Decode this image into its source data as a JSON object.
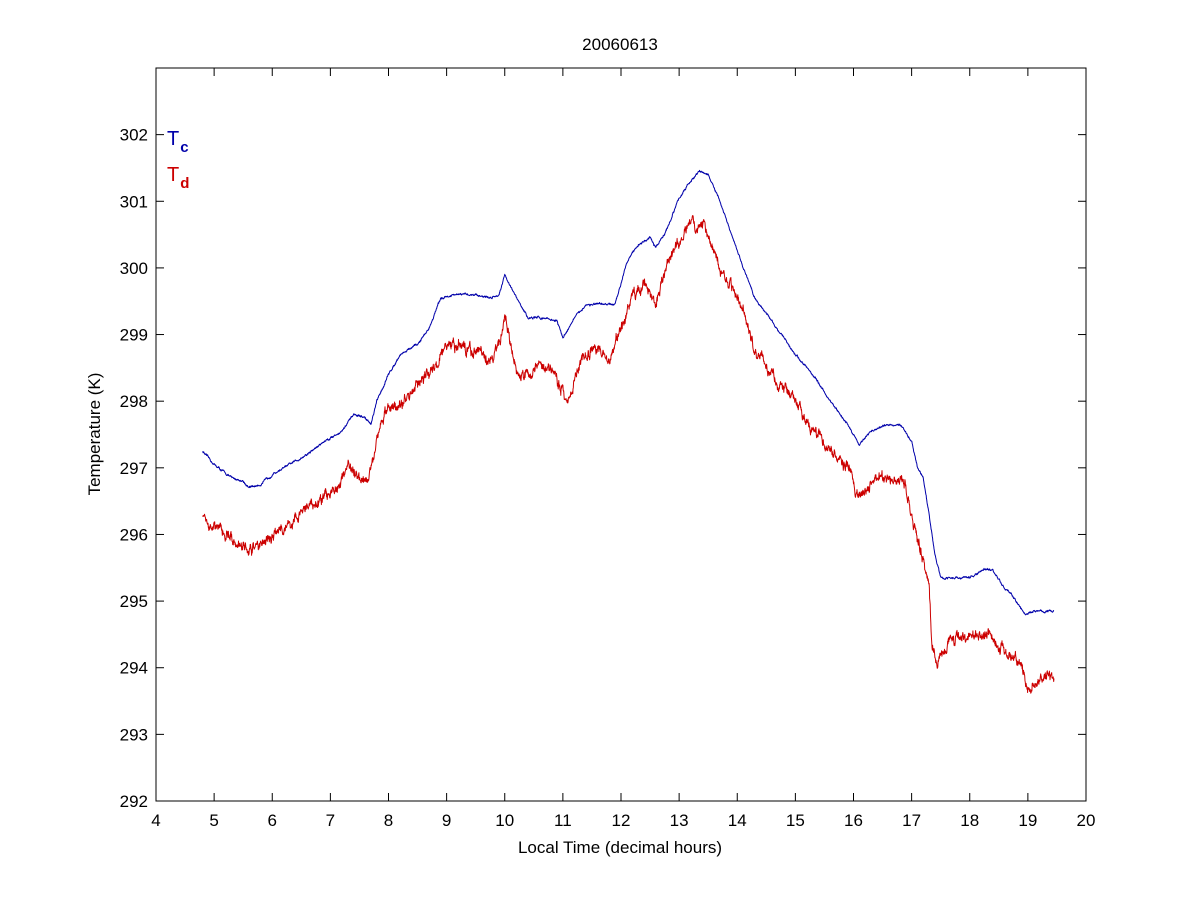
{
  "chart_data": {
    "type": "line",
    "title": "20060613",
    "xlabel": "Local Time (decimal hours)",
    "ylabel": "Temperature (K)",
    "xlim": [
      4,
      20
    ],
    "ylim": [
      292,
      303
    ],
    "xticks": [
      4,
      5,
      6,
      7,
      8,
      9,
      10,
      11,
      12,
      13,
      14,
      15,
      16,
      17,
      18,
      19,
      20
    ],
    "yticks": [
      292,
      293,
      294,
      295,
      296,
      297,
      298,
      299,
      300,
      301,
      302
    ],
    "grid": false,
    "legend": {
      "placement": "top-left",
      "entries": [
        {
          "base": "T",
          "sub": "c",
          "color": "#0000aa"
        },
        {
          "base": "T",
          "sub": "d",
          "color": "#cc0000"
        }
      ]
    },
    "series": [
      {
        "name": "Tc",
        "color": "#0000aa",
        "noise": 0.02,
        "x": [
          4.8,
          5.0,
          5.3,
          5.5,
          5.6,
          5.8,
          6.0,
          6.3,
          6.6,
          6.9,
          7.2,
          7.4,
          7.6,
          7.7,
          7.8,
          8.0,
          8.2,
          8.5,
          8.7,
          8.9,
          9.2,
          9.5,
          9.75,
          9.9,
          10.0,
          10.2,
          10.4,
          10.7,
          10.9,
          11.0,
          11.2,
          11.4,
          11.6,
          11.9,
          12.1,
          12.3,
          12.5,
          12.6,
          12.8,
          13.0,
          13.2,
          13.35,
          13.5,
          13.7,
          14.0,
          14.3,
          14.6,
          15.0,
          15.3,
          15.6,
          15.9,
          16.1,
          16.3,
          16.6,
          16.8,
          17.0,
          17.1,
          17.2,
          17.3,
          17.4,
          17.5,
          17.7,
          18.0,
          18.3,
          18.4,
          18.6,
          18.8,
          18.95,
          19.1,
          19.3,
          19.45
        ],
        "y": [
          297.25,
          297.05,
          296.85,
          296.8,
          296.7,
          296.75,
          296.9,
          297.05,
          297.2,
          297.4,
          297.55,
          297.8,
          297.75,
          297.65,
          298.0,
          298.4,
          298.7,
          298.85,
          299.1,
          299.55,
          299.6,
          299.6,
          299.55,
          299.6,
          299.9,
          299.55,
          299.25,
          299.25,
          299.2,
          298.95,
          299.25,
          299.45,
          299.45,
          299.45,
          300.1,
          300.35,
          300.45,
          300.3,
          300.6,
          301.05,
          301.3,
          301.45,
          301.4,
          301.0,
          300.25,
          299.55,
          299.2,
          298.7,
          298.4,
          298.0,
          297.65,
          297.35,
          297.55,
          297.65,
          297.65,
          297.4,
          297.0,
          296.85,
          296.3,
          295.7,
          295.35,
          295.35,
          295.35,
          295.5,
          295.45,
          295.2,
          295.0,
          294.8,
          294.85,
          294.85,
          294.85
        ]
      },
      {
        "name": "Td",
        "color": "#cc0000",
        "noise": 0.1,
        "x": [
          4.8,
          5.0,
          5.2,
          5.4,
          5.6,
          5.8,
          6.0,
          6.3,
          6.6,
          6.9,
          7.1,
          7.3,
          7.5,
          7.65,
          7.7,
          7.8,
          8.0,
          8.3,
          8.5,
          8.7,
          9.0,
          9.3,
          9.6,
          9.8,
          9.95,
          10.0,
          10.2,
          10.4,
          10.7,
          10.9,
          11.1,
          11.3,
          11.5,
          11.8,
          12.0,
          12.2,
          12.4,
          12.6,
          12.8,
          13.0,
          13.2,
          13.35,
          13.5,
          13.7,
          14.0,
          14.3,
          14.6,
          15.0,
          15.3,
          15.6,
          15.9,
          16.1,
          16.3,
          16.6,
          16.75,
          16.9,
          17.0,
          17.1,
          17.2,
          17.3,
          17.35,
          17.45,
          17.6,
          17.9,
          18.2,
          18.35,
          18.5,
          18.75,
          18.9,
          19.0,
          19.1,
          19.3,
          19.45
        ],
        "y": [
          296.3,
          296.1,
          296.0,
          295.9,
          295.75,
          295.85,
          296.0,
          296.15,
          296.4,
          296.55,
          296.7,
          297.0,
          296.9,
          296.85,
          297.05,
          297.5,
          297.9,
          298.0,
          298.3,
          298.4,
          298.8,
          298.8,
          298.7,
          298.6,
          299.0,
          299.35,
          298.4,
          298.4,
          298.6,
          298.3,
          298.05,
          298.6,
          298.8,
          298.6,
          299.1,
          299.55,
          299.8,
          299.4,
          300.1,
          300.4,
          300.65,
          300.6,
          300.55,
          300.0,
          299.6,
          298.75,
          298.4,
          298.0,
          297.55,
          297.3,
          297.0,
          296.55,
          296.8,
          296.85,
          296.9,
          296.7,
          296.3,
          295.9,
          295.6,
          295.3,
          294.3,
          294.05,
          294.35,
          294.5,
          294.5,
          294.55,
          294.3,
          294.15,
          294.0,
          293.6,
          293.75,
          293.9,
          293.9
        ]
      }
    ]
  }
}
